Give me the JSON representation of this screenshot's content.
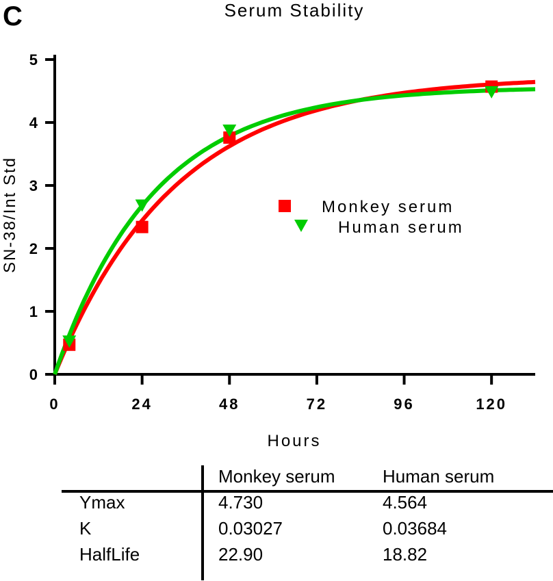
{
  "panel_label": "C",
  "chart_data": {
    "type": "scatter",
    "title": "Serum Stability",
    "xlabel": "Hours",
    "ylabel": "SN-38/Int Std",
    "xlim": [
      0,
      132
    ],
    "ylim": [
      0,
      5
    ],
    "xticks": [
      "0",
      "24",
      "48",
      "72",
      "96",
      "120"
    ],
    "xtick_values": [
      0,
      24,
      48,
      72,
      96,
      120
    ],
    "yticks": [
      "0",
      "1",
      "2",
      "3",
      "4",
      "5"
    ],
    "ytick_values": [
      0,
      1,
      2,
      3,
      4,
      5
    ],
    "grid": false,
    "legend_position": "center-right",
    "series": [
      {
        "name": "Monkey serum",
        "marker": "square",
        "color": "#ff0000",
        "x": [
          4,
          24,
          48,
          120
        ],
        "y": [
          0.47,
          2.34,
          3.76,
          4.57
        ],
        "fit": {
          "model": "one-phase association",
          "ymax": 4.73,
          "k": 0.03027
        }
      },
      {
        "name": "Human serum",
        "marker": "triangle-down",
        "color": "#00cc00",
        "x": [
          4,
          24,
          48,
          120
        ],
        "y": [
          0.53,
          2.69,
          3.88,
          4.49
        ],
        "fit": {
          "model": "one-phase association",
          "ymax": 4.564,
          "k": 0.03684
        }
      }
    ]
  },
  "table": {
    "headers": [
      "",
      "Monkey serum",
      "Human serum"
    ],
    "rows": [
      [
        "Ymax",
        "4.730",
        "4.564"
      ],
      [
        "K",
        "0.03027",
        "0.03684"
      ],
      [
        "HalfLife",
        "22.90",
        "18.82"
      ]
    ]
  }
}
